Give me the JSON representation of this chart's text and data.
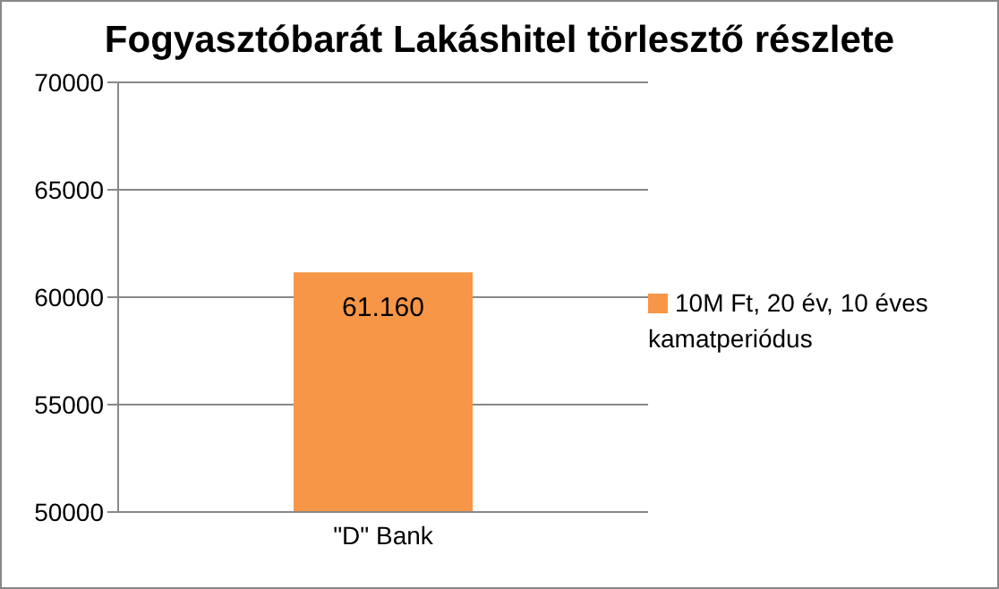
{
  "chart_data": {
    "type": "bar",
    "title": "Fogyasztóbarát Lakáshitel törlesztő részlete",
    "categories": [
      "\"D\" Bank"
    ],
    "series": [
      {
        "name": "10M Ft, 20 év, 10 éves kamatperiódus",
        "color": "#f79646",
        "values": [
          61160
        ],
        "value_labels": [
          "61.160"
        ]
      }
    ],
    "ylim": [
      50000,
      70000
    ],
    "yticks": [
      50000,
      55000,
      60000,
      65000,
      70000
    ],
    "grid": "y",
    "legend": "right"
  }
}
